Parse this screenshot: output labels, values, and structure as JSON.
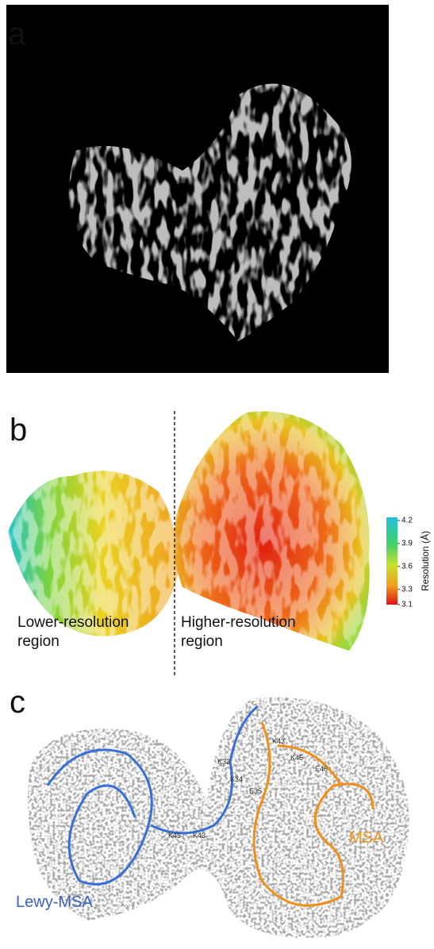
{
  "panels": [
    {
      "label": "a"
    },
    {
      "label": "b",
      "regions": [
        "Lower-resolution\nregion",
        "Higher-resolution\nregion"
      ],
      "colorbar": {
        "title": "Resolution (Å)",
        "range": [
          3.1,
          4.2
        ],
        "ticks": [
          4.2,
          3.9,
          3.6,
          3.3,
          3.1
        ]
      }
    },
    {
      "label": "c",
      "residues": [
        "K43",
        "K32",
        "K45",
        "E46",
        "K34",
        "E35",
        "K45",
        "K43"
      ],
      "chains": [
        "Lewy-MSA",
        "MSA"
      ]
    }
  ]
}
